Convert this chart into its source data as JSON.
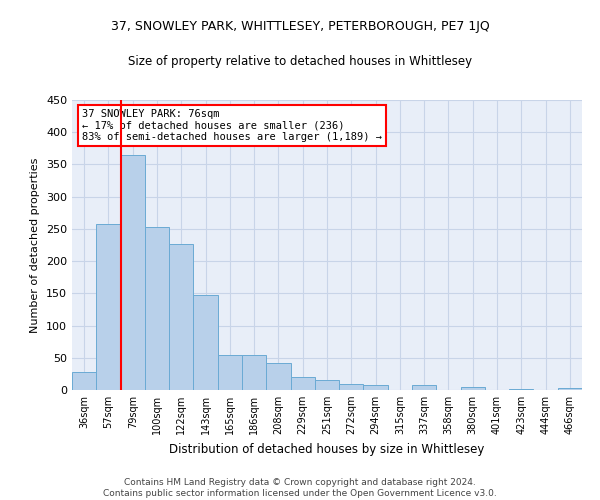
{
  "title": "37, SNOWLEY PARK, WHITTLESEY, PETERBOROUGH, PE7 1JQ",
  "subtitle": "Size of property relative to detached houses in Whittlesey",
  "xlabel": "Distribution of detached houses by size in Whittlesey",
  "ylabel": "Number of detached properties",
  "categories": [
    "36sqm",
    "57sqm",
    "79sqm",
    "100sqm",
    "122sqm",
    "143sqm",
    "165sqm",
    "186sqm",
    "208sqm",
    "229sqm",
    "251sqm",
    "272sqm",
    "294sqm",
    "315sqm",
    "337sqm",
    "358sqm",
    "380sqm",
    "401sqm",
    "423sqm",
    "444sqm",
    "466sqm"
  ],
  "bar_heights": [
    28,
    258,
    365,
    253,
    226,
    148,
    55,
    55,
    42,
    20,
    15,
    10,
    8,
    0,
    7,
    0,
    4,
    0,
    2,
    0,
    3
  ],
  "bar_color": "#b8d0ea",
  "bar_edge_color": "#6aaad4",
  "annotation_text": "37 SNOWLEY PARK: 76sqm\n← 17% of detached houses are smaller (236)\n83% of semi-detached houses are larger (1,189) →",
  "annotation_box_color": "white",
  "annotation_box_edge_color": "red",
  "red_line_color": "red",
  "grid_color": "#c8d4e8",
  "background_color": "#e8eef8",
  "footer": "Contains HM Land Registry data © Crown copyright and database right 2024.\nContains public sector information licensed under the Open Government Licence v3.0.",
  "ylim": [
    0,
    450
  ],
  "yticks": [
    0,
    50,
    100,
    150,
    200,
    250,
    300,
    350,
    400,
    450
  ],
  "title_fontsize": 9,
  "subtitle_fontsize": 8.5,
  "ylabel_fontsize": 8,
  "xlabel_fontsize": 8.5,
  "tick_fontsize": 7,
  "footer_fontsize": 6.5
}
